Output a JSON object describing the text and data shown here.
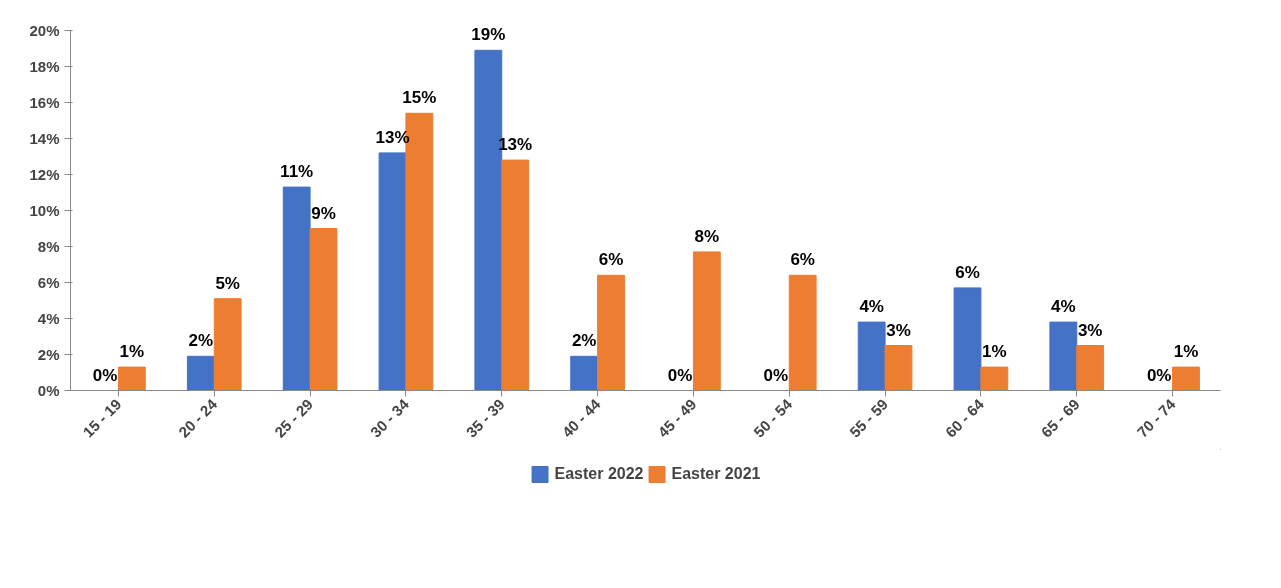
{
  "chart_data": {
    "type": "bar",
    "categories": [
      "15 - 19",
      "20 - 24",
      "25 - 29",
      "30 - 34",
      "35 - 39",
      "40 - 44",
      "45 - 49",
      "50 - 54",
      "55 - 59",
      "60 - 64",
      "65 - 69",
      "70 - 74"
    ],
    "series": [
      {
        "name": "Easter 2022",
        "color": "#4472c4",
        "values": [
          0,
          1.9,
          11.3,
          13.2,
          18.9,
          1.9,
          0,
          0,
          3.8,
          5.7,
          3.8,
          0
        ],
        "value_labels": [
          "0%",
          "2%",
          "11%",
          "13%",
          "19%",
          "2%",
          "0%",
          "0%",
          "4%",
          "6%",
          "4%",
          "0%"
        ]
      },
      {
        "name": "Easter 2021",
        "color": "#ed7d31",
        "values": [
          1.3,
          5.1,
          9.0,
          15.4,
          12.8,
          6.4,
          7.7,
          6.4,
          2.5,
          1.3,
          2.5,
          1.3
        ],
        "value_labels": [
          "1%",
          "5%",
          "9%",
          "15%",
          "13%",
          "6%",
          "8%",
          "6%",
          "3%",
          "1%",
          "3%",
          "1%"
        ]
      }
    ],
    "ylim": [
      0,
      20
    ],
    "yticks": [
      {
        "value": 0,
        "label": "0%"
      },
      {
        "value": 2,
        "label": "2%"
      },
      {
        "value": 4,
        "label": "4%"
      },
      {
        "value": 6,
        "label": "6%"
      },
      {
        "value": 8,
        "label": "8%"
      },
      {
        "value": 10,
        "label": "10%"
      },
      {
        "value": 12,
        "label": "12%"
      },
      {
        "value": 14,
        "label": "14%"
      },
      {
        "value": 16,
        "label": "16%"
      },
      {
        "value": 18,
        "label": "18%"
      },
      {
        "value": 20,
        "label": "20%"
      }
    ],
    "grid": false,
    "legend": "bottom"
  }
}
